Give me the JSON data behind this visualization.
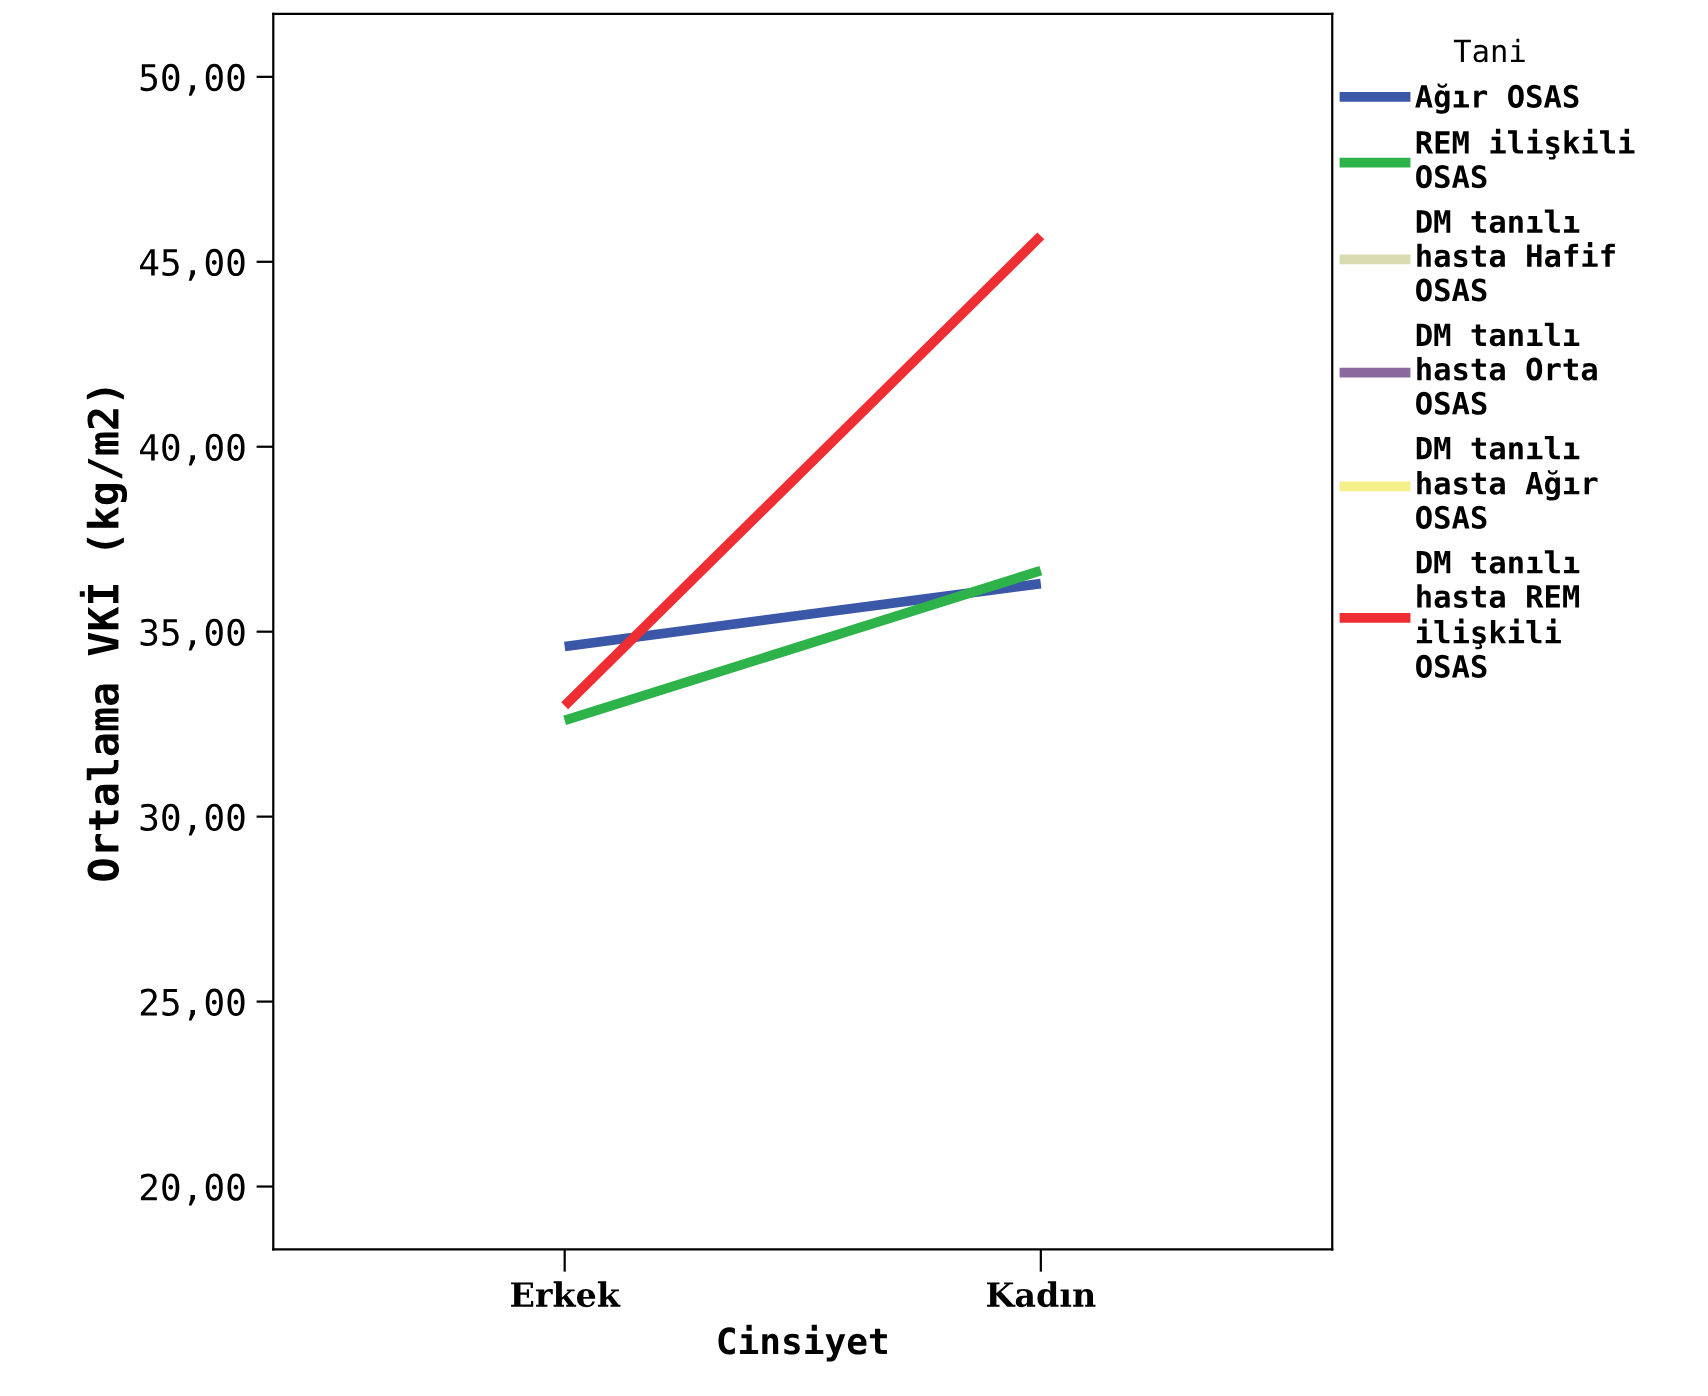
{
  "chart_data": {
    "type": "line",
    "xlabel": "Cinsiyet",
    "ylabel": "Ortalama VKİ (kg/m2)",
    "legend_title": "Tani",
    "categories": [
      "Erkek",
      "Kadın"
    ],
    "series": [
      {
        "name": "Ağır OSAS",
        "color": "#3a57a8",
        "values": [
          34.6,
          36.3
        ]
      },
      {
        "name": "REM ilişkili\nOSAS",
        "color": "#2eb34a",
        "values": [
          32.6,
          36.65
        ]
      },
      {
        "name": "DM tanılı\nhasta Hafif\nOSAS",
        "color": "#d8dcb0",
        "values": [
          null,
          null
        ]
      },
      {
        "name": "DM tanılı\nhasta Orta\nOSAS",
        "color": "#8a6a9e",
        "values": [
          null,
          null
        ]
      },
      {
        "name": "DM tanılı\nhasta Ağır\nOSAS",
        "color": "#f5f08a",
        "values": [
          null,
          null
        ]
      },
      {
        "name": "DM tanılı\nhasta REM\nilişkili\nOSAS",
        "color": "#ee2e32",
        "values": [
          33.0,
          45.7
        ]
      }
    ],
    "ylim": [
      18.3,
      51.7
    ],
    "yticks": [
      {
        "value": 20,
        "label": "20,00"
      },
      {
        "value": 25,
        "label": "25,00"
      },
      {
        "value": 30,
        "label": "30,00"
      },
      {
        "value": 35,
        "label": "35,00"
      },
      {
        "value": 40,
        "label": "40,00"
      },
      {
        "value": 45,
        "label": "45,00"
      },
      {
        "value": 50,
        "label": "50,00"
      }
    ],
    "grid": false,
    "legend": "right",
    "marker": "none",
    "line_style": "solid"
  }
}
